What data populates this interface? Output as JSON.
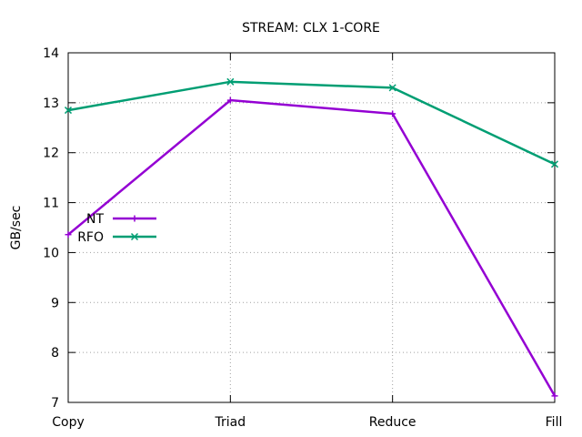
{
  "chart_data": {
    "type": "line",
    "title": "STREAM: CLX 1-CORE",
    "xlabel": "",
    "ylabel": "GB/sec",
    "categories": [
      "Copy",
      "Triad",
      "Reduce",
      "Fill"
    ],
    "ylim": [
      7,
      14
    ],
    "yticks": [
      "7",
      "8",
      "9",
      "10",
      "11",
      "12",
      "13",
      "14"
    ],
    "grid": true,
    "legend_position": "left-middle",
    "series": [
      {
        "name": "NT",
        "values": [
          10.36,
          13.05,
          12.78,
          7.13
        ],
        "color": "#9400d3",
        "marker": "plus"
      },
      {
        "name": "RFO",
        "values": [
          12.85,
          13.42,
          13.3,
          11.77
        ],
        "color": "#009e73",
        "marker": "cross"
      }
    ]
  }
}
